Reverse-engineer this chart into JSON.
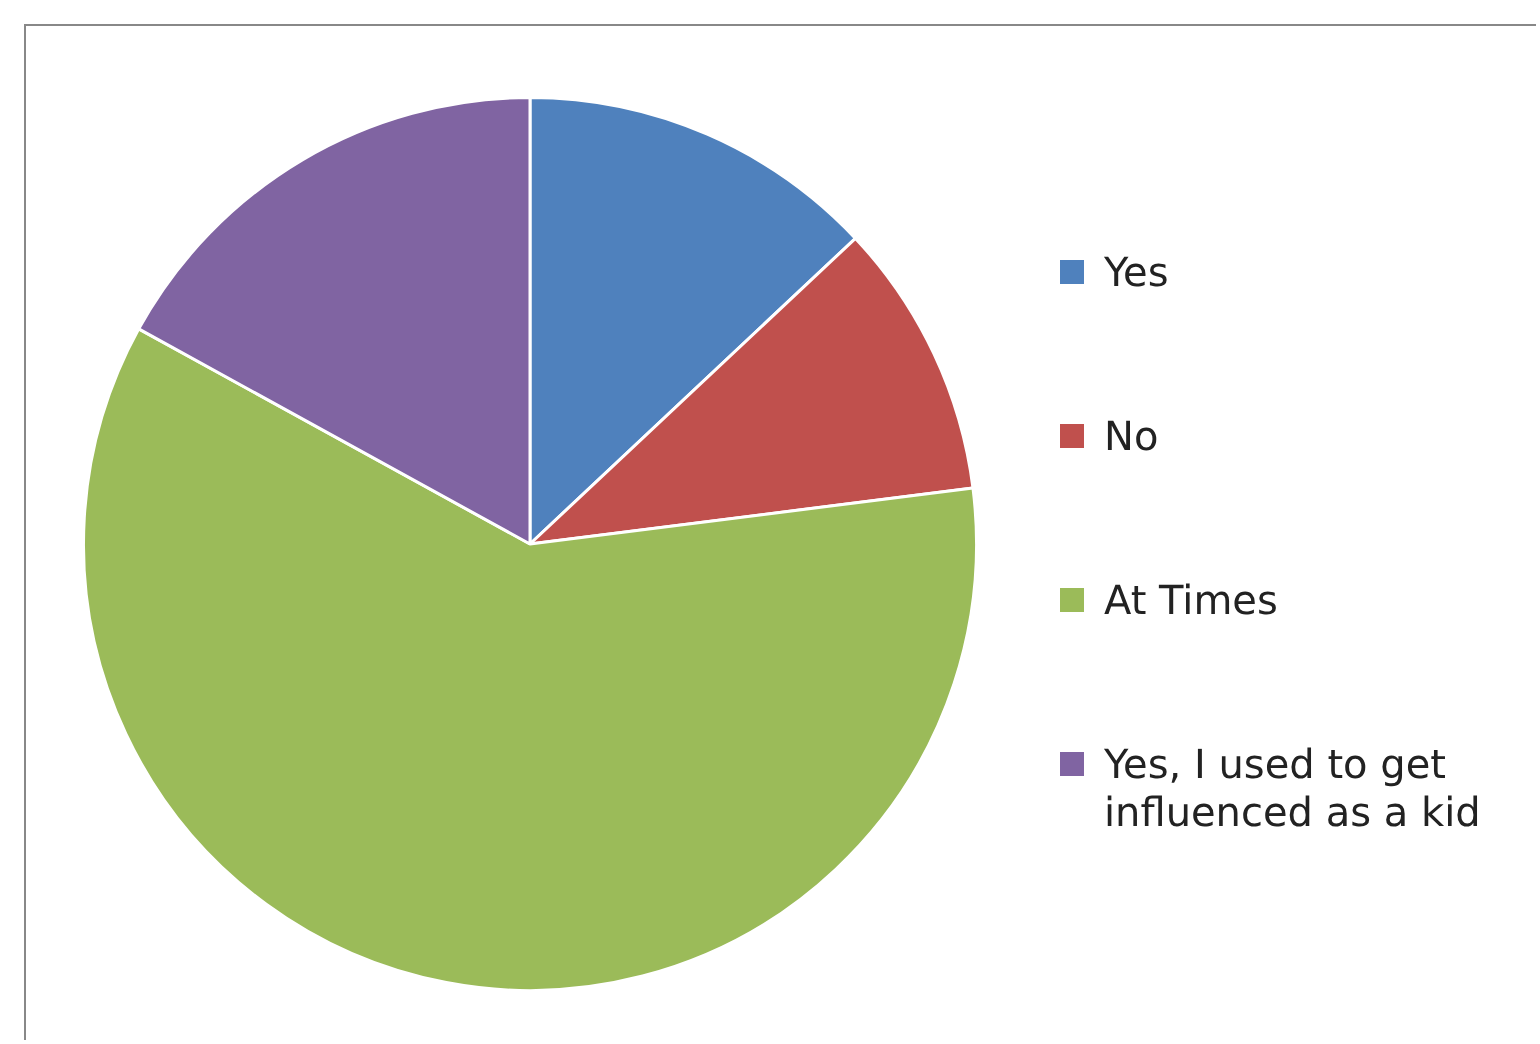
{
  "chart_data": {
    "type": "pie",
    "categories": [
      "Yes",
      "No",
      "At Times",
      "Yes, I used to get influenced as a kid"
    ],
    "values": [
      13,
      10,
      60,
      17
    ],
    "colors": [
      "#4f81bd",
      "#c0504d",
      "#9bbb59",
      "#8064a2"
    ],
    "legend": "right"
  }
}
